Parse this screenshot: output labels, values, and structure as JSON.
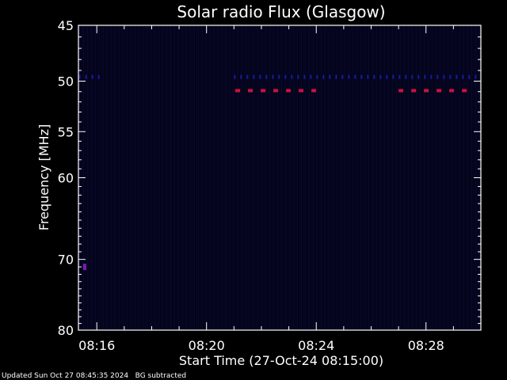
{
  "chart_data": {
    "type": "heatmap",
    "title": "Solar radio Flux (Glasgow)",
    "xlabel": "Start Time (27-Oct-24 08:15:00)",
    "ylabel": "Frequency [MHz]",
    "x_ticks": [
      "08:16",
      "08:20",
      "08:24",
      "08:28"
    ],
    "x_tick_minutes": [
      16,
      20,
      24,
      28
    ],
    "xlim_minutes": [
      15.33,
      30.0
    ],
    "y_ticks": [
      45,
      50,
      55,
      60,
      70,
      80
    ],
    "ylim": [
      45,
      80
    ],
    "y_scale": "log",
    "grid": false,
    "colors": {
      "background": "#000000",
      "plot_background": "#04041a",
      "low_intensity": "#1a1aa0",
      "high_intensity": "#d01040",
      "axis": "#ffffff"
    },
    "features": [
      {
        "name": "band-49.6MHz",
        "freq": 49.6,
        "minute_ranges": [
          [
            15.35,
            16.3
          ],
          [
            21.0,
            30.0
          ]
        ],
        "level": "low"
      },
      {
        "name": "burst-51MHz-a",
        "freq": 50.9,
        "minute_ranges": [
          [
            21.05,
            24.25
          ]
        ],
        "level": "high"
      },
      {
        "name": "burst-51MHz-b",
        "freq": 50.9,
        "minute_ranges": [
          [
            27.0,
            29.55
          ]
        ],
        "level": "high"
      },
      {
        "name": "spot-71MHz",
        "freq": 71.0,
        "minute_ranges": [
          [
            15.5,
            15.62
          ]
        ],
        "level": "medium"
      }
    ]
  },
  "footer": {
    "updated": "Updated Sun Oct 27 08:45:35 2024",
    "note": "BG subtracted"
  }
}
